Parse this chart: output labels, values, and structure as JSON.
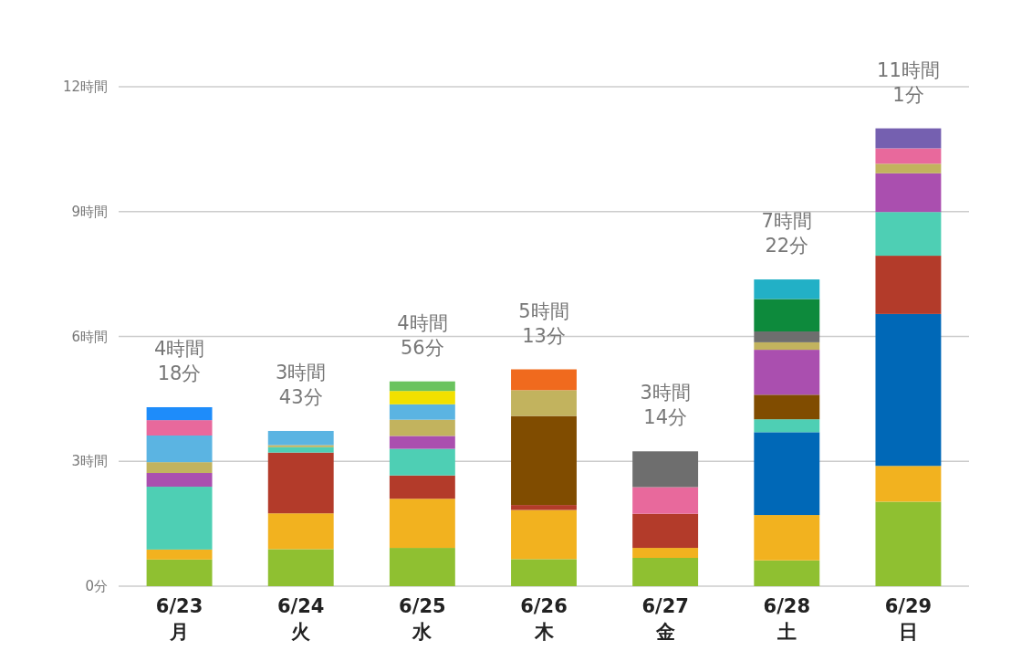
{
  "chart_data": {
    "type": "bar",
    "stacked": true,
    "grid": "y",
    "categories": [
      "6/23 月",
      "6/24 火",
      "6/25 水",
      "6/26 木",
      "6/27 金",
      "6/28 土",
      "6/29 日"
    ],
    "ylim": [
      0,
      12
    ],
    "yticks": [
      {
        "value": 0,
        "label": "0分"
      },
      {
        "value": 3,
        "label": "3時間"
      },
      {
        "value": 6,
        "label": "6時間"
      },
      {
        "value": 9,
        "label": "9時間"
      },
      {
        "value": 12,
        "label": "12時間"
      }
    ],
    "totals": [
      "4時間 18分",
      "3時間 43分",
      "4時間 56分",
      "5時間 13分",
      "3時間 14分",
      "7時間 22分",
      "11時間 1分"
    ],
    "series": [
      {
        "color": "#8fc031",
        "values": [
          0.64,
          0.89,
          0.92,
          0.65,
          0.68,
          0.62,
          2.03
        ]
      },
      {
        "color": "#f2b21f",
        "values": [
          0.24,
          0.86,
          1.18,
          1.18,
          0.24,
          1.09,
          0.86
        ]
      },
      {
        "color": "#0068b7",
        "values": [
          null,
          null,
          null,
          null,
          null,
          1.99,
          3.65
        ]
      },
      {
        "color": "#b33b2a",
        "values": [
          null,
          1.46,
          0.56,
          0.12,
          0.82,
          null,
          1.4
        ]
      },
      {
        "color": "#4ecfb4",
        "values": [
          1.51,
          0.13,
          0.64,
          null,
          null,
          0.31,
          1.05
        ]
      },
      {
        "color": "#804c00",
        "values": [
          null,
          null,
          null,
          2.14,
          null,
          0.59,
          null
        ]
      },
      {
        "color": "#aa4faf",
        "values": [
          0.33,
          null,
          0.31,
          null,
          null,
          1.08,
          0.93
        ]
      },
      {
        "color": "#c2b35e",
        "values": [
          0.26,
          0.05,
          0.39,
          0.62,
          null,
          0.18,
          0.23
        ]
      },
      {
        "color": "#5bb4e2",
        "values": [
          0.64,
          0.34,
          0.37,
          null,
          null,
          null,
          null
        ]
      },
      {
        "color": "#e8699c",
        "values": [
          0.37,
          null,
          null,
          null,
          0.64,
          null,
          0.37
        ]
      },
      {
        "color": "#1e8cfa",
        "values": [
          0.31,
          null,
          null,
          null,
          null,
          null,
          null
        ]
      },
      {
        "color": "#f2e000",
        "values": [
          null,
          null,
          0.32,
          null,
          null,
          null,
          null
        ]
      },
      {
        "color": "#6ac35e",
        "values": [
          null,
          null,
          0.23,
          null,
          null,
          null,
          null
        ]
      },
      {
        "color": "#f06a1e",
        "values": [
          null,
          null,
          null,
          0.5,
          null,
          null,
          null
        ]
      },
      {
        "color": "#6e6e6e",
        "values": [
          null,
          null,
          null,
          null,
          0.86,
          0.26,
          null
        ]
      },
      {
        "color": "#0d8a3c",
        "values": [
          null,
          null,
          null,
          null,
          null,
          0.78,
          null
        ]
      },
      {
        "color": "#22b0c6",
        "values": [
          null,
          null,
          null,
          null,
          null,
          0.47,
          null
        ]
      },
      {
        "color": "#7560b0",
        "values": [
          null,
          null,
          null,
          null,
          null,
          null,
          0.48
        ]
      }
    ]
  }
}
